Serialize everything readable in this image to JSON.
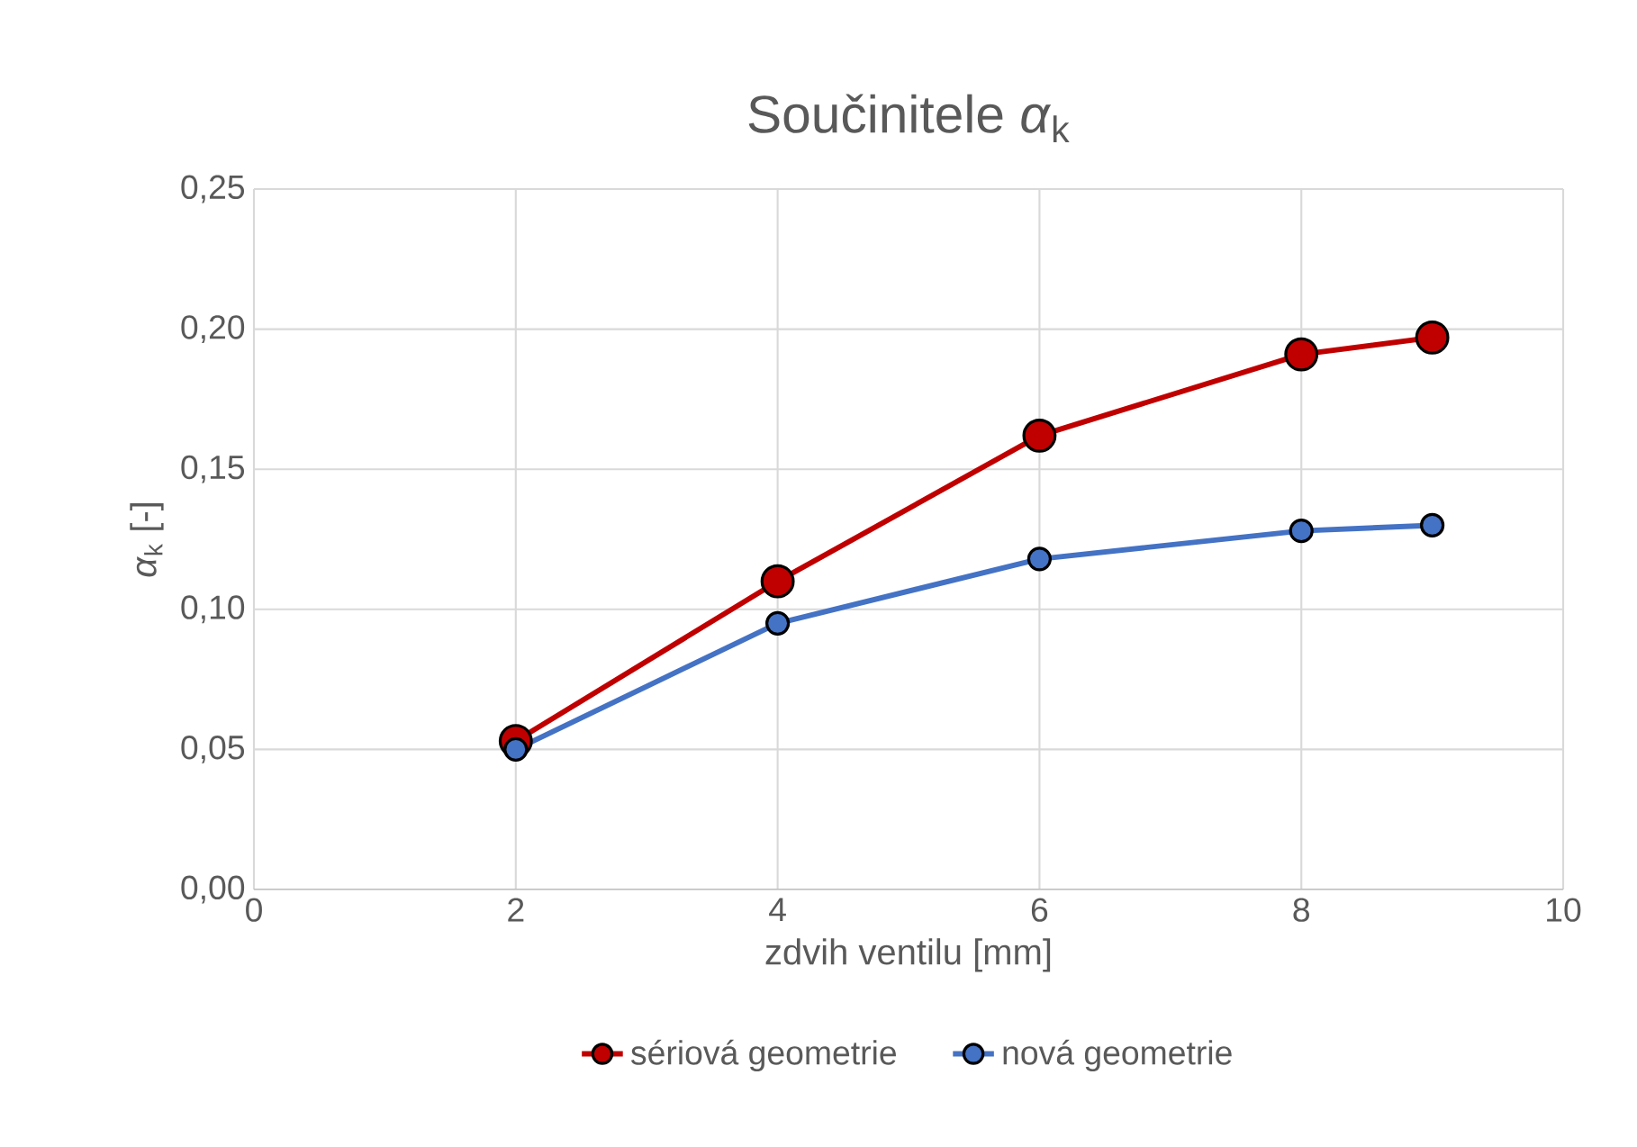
{
  "chart_data": {
    "type": "line",
    "title": "Součinitele *α*$_{k}$",
    "xlabel": "zdvih ventilu [mm]",
    "ylabel": "*α*$_{k}$ [-]",
    "x": [
      2,
      4,
      6,
      8,
      9
    ],
    "series": [
      {
        "name": "sériová geometrie",
        "color": "#c00000",
        "values": [
          0.053,
          0.11,
          0.162,
          0.191,
          0.197
        ]
      },
      {
        "name": "nová geometrie",
        "color": "#4472c4",
        "values": [
          0.05,
          0.095,
          0.118,
          0.128,
          0.13
        ]
      }
    ],
    "xlim": [
      0,
      10
    ],
    "xticks": [
      0,
      2,
      4,
      6,
      8,
      10
    ],
    "ylim": [
      0,
      0.25
    ],
    "yticks": [
      {
        "value": 0,
        "label": "0,00"
      },
      {
        "value": 0.05,
        "label": "0,05"
      },
      {
        "value": 0.1,
        "label": "0,10"
      },
      {
        "value": 0.15,
        "label": "0,15"
      },
      {
        "value": 0.2,
        "label": "0,20"
      },
      {
        "value": 0.25,
        "label": "0,25"
      }
    ],
    "grid": true,
    "legend": "bottom",
    "marker": "circle",
    "line_style": "solid"
  }
}
